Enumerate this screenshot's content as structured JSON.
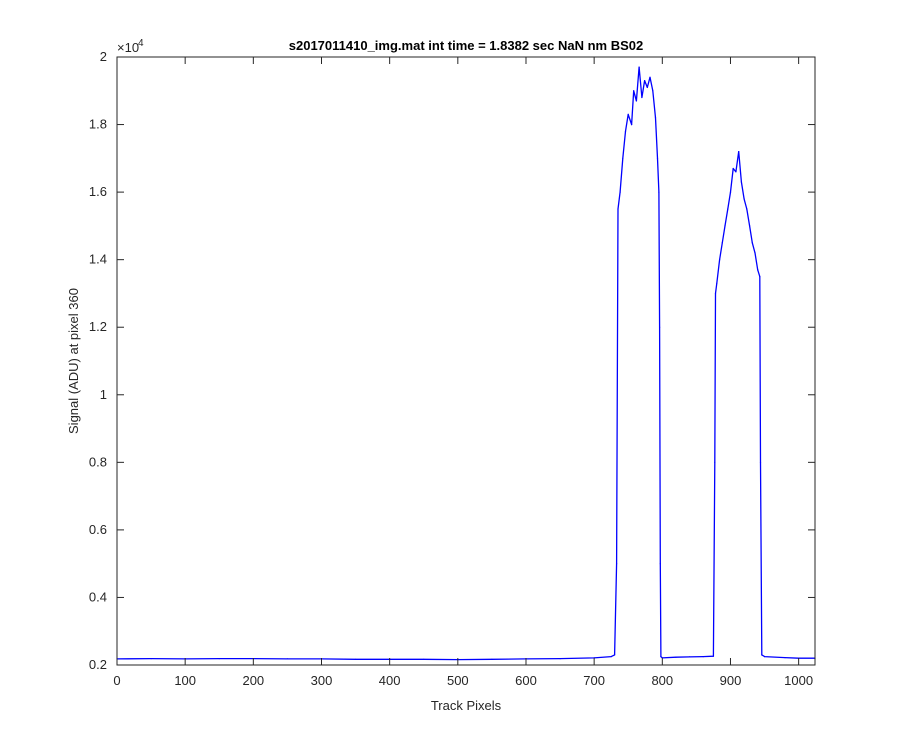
{
  "chart_data": {
    "type": "line",
    "title": "s2017011410_img.mat int time = 1.8382 sec  NaN nm BS02",
    "xlabel": "Track Pixels",
    "ylabel": "Signal (ADU) at pixel 360",
    "exponent_label": "×10",
    "exponent_power": "4",
    "xlim": [
      0,
      1024
    ],
    "ylim": [
      0.2,
      2.0
    ],
    "y_multiplier": 10000,
    "grid": false,
    "x_ticks": [
      {
        "value": 0,
        "label": "0"
      },
      {
        "value": 100,
        "label": "100"
      },
      {
        "value": 200,
        "label": "200"
      },
      {
        "value": 300,
        "label": "300"
      },
      {
        "value": 400,
        "label": "400"
      },
      {
        "value": 500,
        "label": "500"
      },
      {
        "value": 600,
        "label": "600"
      },
      {
        "value": 700,
        "label": "700"
      },
      {
        "value": 800,
        "label": "800"
      },
      {
        "value": 900,
        "label": "900"
      },
      {
        "value": 1000,
        "label": "1000"
      }
    ],
    "y_ticks": [
      {
        "value": 0.2,
        "label": "0.2"
      },
      {
        "value": 0.4,
        "label": "0.4"
      },
      {
        "value": 0.6,
        "label": "0.6"
      },
      {
        "value": 0.8,
        "label": "0.8"
      },
      {
        "value": 1.0,
        "label": "1"
      },
      {
        "value": 1.2,
        "label": "1.2"
      },
      {
        "value": 1.4,
        "label": "1.4"
      },
      {
        "value": 1.6,
        "label": "1.6"
      },
      {
        "value": 1.8,
        "label": "1.8"
      },
      {
        "value": 2.0,
        "label": "2"
      }
    ],
    "series": [
      {
        "color": "#0000ff",
        "x": [
          0,
          50,
          100,
          150,
          200,
          250,
          300,
          350,
          400,
          450,
          500,
          550,
          600,
          650,
          700,
          725,
          730,
          733,
          735,
          738,
          742,
          746,
          750,
          755,
          758,
          762,
          766,
          770,
          774,
          778,
          782,
          786,
          790,
          793,
          795,
          796,
          797,
          798,
          800,
          820,
          840,
          860,
          875,
          877,
          878,
          880,
          884,
          888,
          892,
          896,
          900,
          904,
          908,
          912,
          916,
          920,
          924,
          928,
          932,
          936,
          940,
          943,
          944,
          946,
          950,
          980,
          1000,
          1024
        ],
        "y": [
          0.218,
          0.219,
          0.218,
          0.219,
          0.219,
          0.218,
          0.218,
          0.217,
          0.217,
          0.217,
          0.216,
          0.217,
          0.218,
          0.219,
          0.221,
          0.225,
          0.23,
          0.5,
          1.55,
          1.6,
          1.7,
          1.78,
          1.83,
          1.8,
          1.9,
          1.87,
          1.97,
          1.88,
          1.93,
          1.91,
          1.94,
          1.9,
          1.82,
          1.7,
          1.6,
          1.2,
          0.5,
          0.225,
          0.221,
          0.223,
          0.224,
          0.225,
          0.226,
          0.8,
          1.3,
          1.33,
          1.4,
          1.45,
          1.5,
          1.55,
          1.6,
          1.67,
          1.66,
          1.72,
          1.63,
          1.58,
          1.55,
          1.5,
          1.45,
          1.42,
          1.37,
          1.35,
          0.8,
          0.23,
          0.225,
          0.222,
          0.22,
          0.22
        ]
      }
    ]
  }
}
